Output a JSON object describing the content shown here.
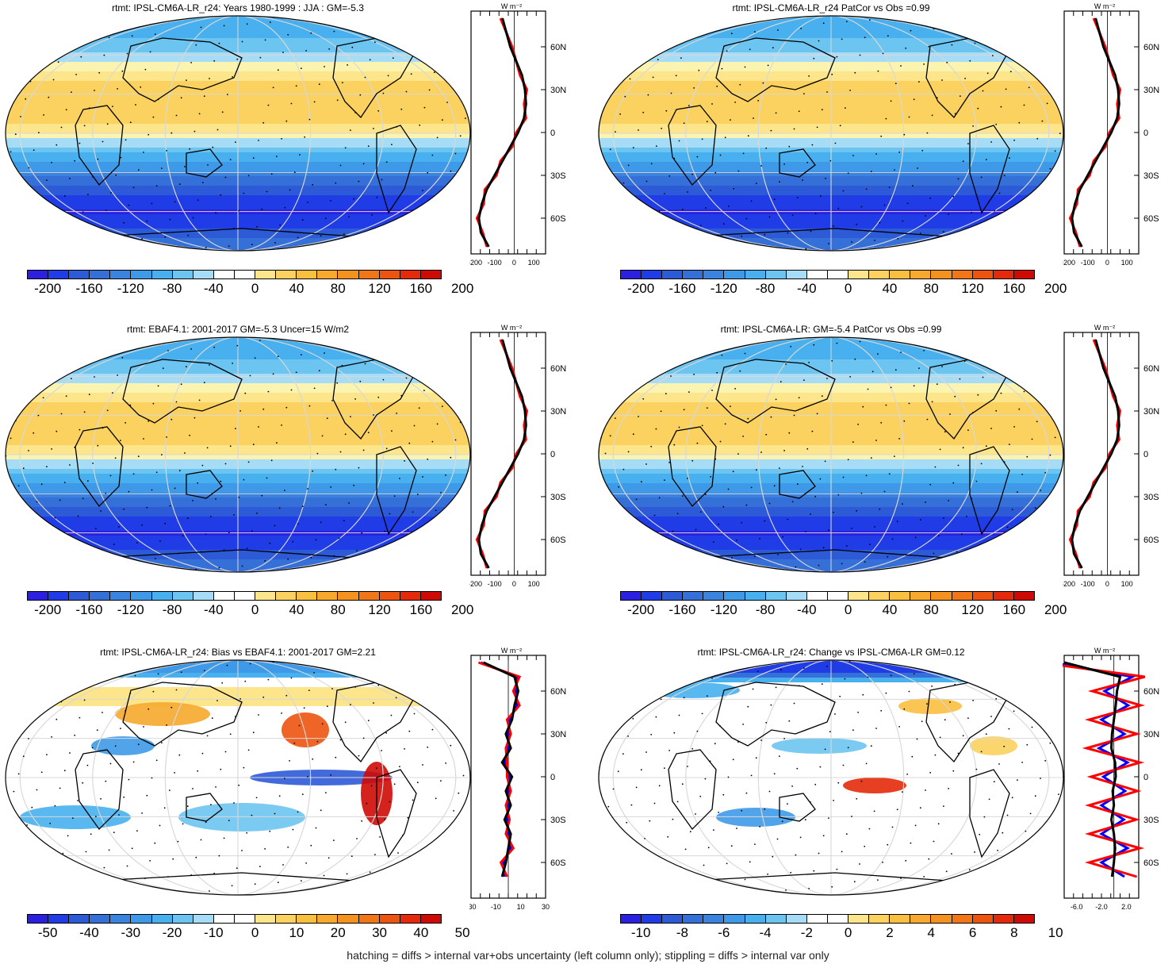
{
  "footer": "hatching = diffs > internal var+obs uncertainty (left column only); stippling = diffs > internal var only",
  "colors": {
    "negative_scale": [
      "#2b1fe0",
      "#1f3ce6",
      "#2d5ad6",
      "#356fd8",
      "#3a84e0",
      "#3e9ae8",
      "#48b0ee",
      "#6cc4f0",
      "#a6dcf5"
    ],
    "positive_scale": [
      "#fbf3b0",
      "#fce58a",
      "#fbd25f",
      "#f9bf3f",
      "#f6a92c",
      "#f4911f",
      "#f07617",
      "#ec5410",
      "#e42a0a",
      "#cf0a05"
    ],
    "obs_line": "#000000",
    "model_line": "#ff0000",
    "alt_line": "#0000ff"
  },
  "panels": [
    {
      "title": "rtmt: IPSL-CM6A-LR_r24: Years 1980-1999 : JJA : GM=-5.3",
      "colorbar_labels": [
        "-200",
        "-160",
        "-120",
        "-80",
        "-40",
        "0",
        "40",
        "80",
        "120",
        "160",
        "200"
      ],
      "profile_unit": "W m⁻²",
      "profile_xticks": [
        "-200",
        "-100",
        "0",
        "100"
      ],
      "profile_lat_labels": [
        "60N",
        "30N",
        "0",
        "30S",
        "60S"
      ]
    },
    {
      "title": "rtmt: IPSL-CM6A-LR_r24 PatCor vs Obs =0.99",
      "colorbar_labels": [
        "-200",
        "-160",
        "-120",
        "-80",
        "-40",
        "0",
        "40",
        "80",
        "120",
        "160",
        "200"
      ],
      "profile_unit": "W m⁻²",
      "profile_xticks": [
        "-200",
        "-100",
        "0",
        "100"
      ],
      "profile_lat_labels": [
        "60N",
        "30N",
        "0",
        "30S",
        "60S"
      ]
    },
    {
      "title": "rtmt: EBAF4.1: 2001-2017 GM=-5.3 Uncer=15 W/m2",
      "colorbar_labels": [
        "-200",
        "-160",
        "-120",
        "-80",
        "-40",
        "0",
        "40",
        "80",
        "120",
        "160",
        "200"
      ],
      "profile_unit": "W m⁻²",
      "profile_xticks": [
        "-200",
        "-100",
        "0",
        "100"
      ],
      "profile_lat_labels": [
        "60N",
        "30N",
        "0",
        "30S",
        "60S"
      ]
    },
    {
      "title": "rtmt: IPSL-CM6A-LR: GM=-5.4 PatCor vs Obs =0.99",
      "colorbar_labels": [
        "-200",
        "-160",
        "-120",
        "-80",
        "-40",
        "0",
        "40",
        "80",
        "120",
        "160",
        "200"
      ],
      "profile_unit": "W m⁻²",
      "profile_xticks": [
        "-200",
        "-100",
        "0",
        "100"
      ],
      "profile_lat_labels": [
        "60N",
        "30N",
        "0",
        "30S",
        "60S"
      ]
    },
    {
      "title": "rtmt: IPSL-CM6A-LR_r24: Bias vs EBAF4.1: 2001-2017 GM=2.21",
      "colorbar_labels": [
        "-50",
        "-40",
        "-30",
        "-20",
        "-10",
        "0",
        "10",
        "20",
        "30",
        "40",
        "50"
      ],
      "profile_unit": "W m⁻²",
      "profile_xticks": [
        "-30",
        "-10",
        "10",
        "30"
      ],
      "profile_lat_labels": [
        "60N",
        "30N",
        "0",
        "30S",
        "60S"
      ]
    },
    {
      "title": "rtmt: IPSL-CM6A-LR_r24: Change vs IPSL-CM6A-LR GM=0.12",
      "colorbar_labels": [
        "-10",
        "-8",
        "-6",
        "-4",
        "-2",
        "0",
        "2",
        "4",
        "6",
        "8",
        "10"
      ],
      "profile_unit": "W m⁻²",
      "profile_xticks": [
        "-6.0",
        "-2.0",
        "2.0"
      ],
      "profile_lat_labels": [
        "60N",
        "30N",
        "0",
        "30S",
        "60S"
      ]
    }
  ],
  "chart_data": [
    {
      "type": "heatmap",
      "title": "rtmt: IPSL-CM6A-LR_r24: Years 1980-1999 : JJA : GM=-5.3",
      "color_range": [
        -200,
        200
      ],
      "global_mean": -5.3,
      "zonal_mean": {
        "lat": [
          80,
          60,
          40,
          30,
          20,
          10,
          0,
          -10,
          -20,
          -30,
          -40,
          -50,
          -60,
          -70,
          -80
        ],
        "values": [
          -60,
          -20,
          40,
          55,
          60,
          50,
          20,
          -20,
          -60,
          -100,
          -140,
          -165,
          -180,
          -170,
          -130
        ]
      }
    },
    {
      "type": "heatmap",
      "title": "rtmt: IPSL-CM6A-LR_r24 PatCor vs Obs =0.99",
      "color_range": [
        -200,
        200
      ],
      "pattern_correlation": 0.99,
      "zonal_mean": {
        "lat": [
          80,
          60,
          40,
          30,
          20,
          10,
          0,
          -10,
          -20,
          -30,
          -40,
          -50,
          -60,
          -70,
          -80
        ],
        "values": [
          -60,
          -20,
          40,
          55,
          60,
          50,
          20,
          -20,
          -60,
          -100,
          -140,
          -165,
          -180,
          -170,
          -130
        ]
      }
    },
    {
      "type": "heatmap",
      "title": "rtmt: EBAF4.1: 2001-2017 GM=-5.3 Uncer=15 W/m2",
      "color_range": [
        -200,
        200
      ],
      "global_mean": -5.3,
      "uncertainty": 15,
      "zonal_mean": {
        "lat": [
          80,
          60,
          40,
          30,
          20,
          10,
          0,
          -10,
          -20,
          -30,
          -40,
          -50,
          -60,
          -70,
          -80
        ],
        "values": [
          -60,
          -20,
          40,
          55,
          60,
          50,
          20,
          -20,
          -60,
          -100,
          -140,
          -165,
          -180,
          -170,
          -130
        ]
      }
    },
    {
      "type": "heatmap",
      "title": "rtmt: IPSL-CM6A-LR: GM=-5.4 PatCor vs Obs =0.99",
      "color_range": [
        -200,
        200
      ],
      "global_mean": -5.4,
      "pattern_correlation": 0.99,
      "zonal_mean": {
        "lat": [
          80,
          60,
          40,
          30,
          20,
          10,
          0,
          -10,
          -20,
          -30,
          -40,
          -50,
          -60,
          -70,
          -80
        ],
        "values": [
          -60,
          -20,
          40,
          55,
          60,
          50,
          20,
          -20,
          -60,
          -100,
          -140,
          -165,
          -180,
          -170,
          -130
        ]
      }
    },
    {
      "type": "heatmap",
      "title": "rtmt: IPSL-CM6A-LR_r24: Bias vs EBAF4.1: 2001-2017 GM=2.21",
      "color_range": [
        -50,
        50
      ],
      "global_mean": 2.21,
      "zonal_mean": {
        "lat": [
          80,
          70,
          60,
          50,
          40,
          30,
          20,
          10,
          0,
          -10,
          -20,
          -30,
          -40,
          -50,
          -60,
          -70
        ],
        "values": [
          -20,
          5,
          8,
          5,
          3,
          -2,
          2,
          -5,
          3,
          -2,
          2,
          -3,
          2,
          0,
          -2,
          -5
        ]
      }
    },
    {
      "type": "heatmap",
      "title": "rtmt: IPSL-CM6A-LR_r24: Change vs IPSL-CM6A-LR GM=0.12",
      "color_range": [
        -10,
        10
      ],
      "global_mean": 0.12,
      "zonal_mean": {
        "lat": [
          80,
          70,
          60,
          50,
          40,
          30,
          20,
          10,
          0,
          -10,
          -20,
          -30,
          -40,
          -50,
          -60,
          -70
        ],
        "values": [
          -8,
          1,
          0.5,
          0.3,
          0,
          -0.3,
          -0.4,
          0.2,
          0.3,
          -0.2,
          0,
          -0.4,
          0,
          0.2,
          0,
          -0.3
        ]
      }
    }
  ]
}
